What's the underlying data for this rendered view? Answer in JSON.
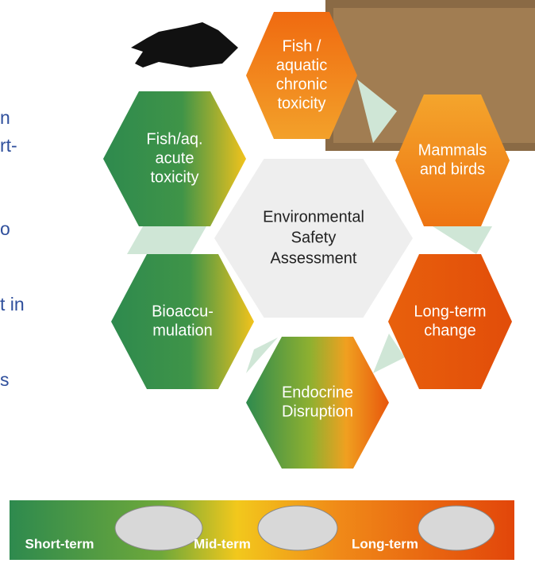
{
  "side_text": [
    "n",
    "rt-",
    "o",
    "t in",
    "s"
  ],
  "center": {
    "lines": [
      "Environmental",
      "Safety",
      "Assessment"
    ]
  },
  "hexagons": [
    {
      "lines": [
        "Fish /",
        "aquatic",
        "chronic",
        "toxicity"
      ]
    },
    {
      "lines": [
        "Mammals",
        "and birds"
      ]
    },
    {
      "lines": [
        "Long-term",
        "change"
      ]
    },
    {
      "lines": [
        "Endocrine",
        "Disruption"
      ]
    },
    {
      "lines": [
        "Bioaccu-",
        "mulation"
      ]
    },
    {
      "lines": [
        "Fish/aq.",
        "acute",
        "toxicity"
      ]
    }
  ],
  "scale": {
    "labels": [
      "Short-term",
      "Mid-term",
      "Long-term"
    ]
  }
}
